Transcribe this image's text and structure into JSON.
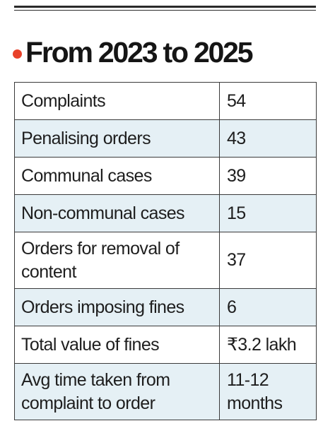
{
  "header": {
    "title": "From 2023 to 2025",
    "accent_color": "#e8412a"
  },
  "table": {
    "rows": [
      {
        "label": "Complaints",
        "value": "54"
      },
      {
        "label": "Penalising orders",
        "value": "43"
      },
      {
        "label": "Communal cases",
        "value": "39"
      },
      {
        "label": "Non-communal cases",
        "value": "15"
      },
      {
        "label": "Orders for removal of content",
        "value": "37"
      },
      {
        "label": "Orders imposing fines",
        "value": "6"
      },
      {
        "label": "Total value of fines",
        "value": "₹3.2 lakh"
      },
      {
        "label": "Avg time taken from complaint to order",
        "value": "11-12 months"
      }
    ],
    "stripe_color": "#e5f0f5"
  }
}
